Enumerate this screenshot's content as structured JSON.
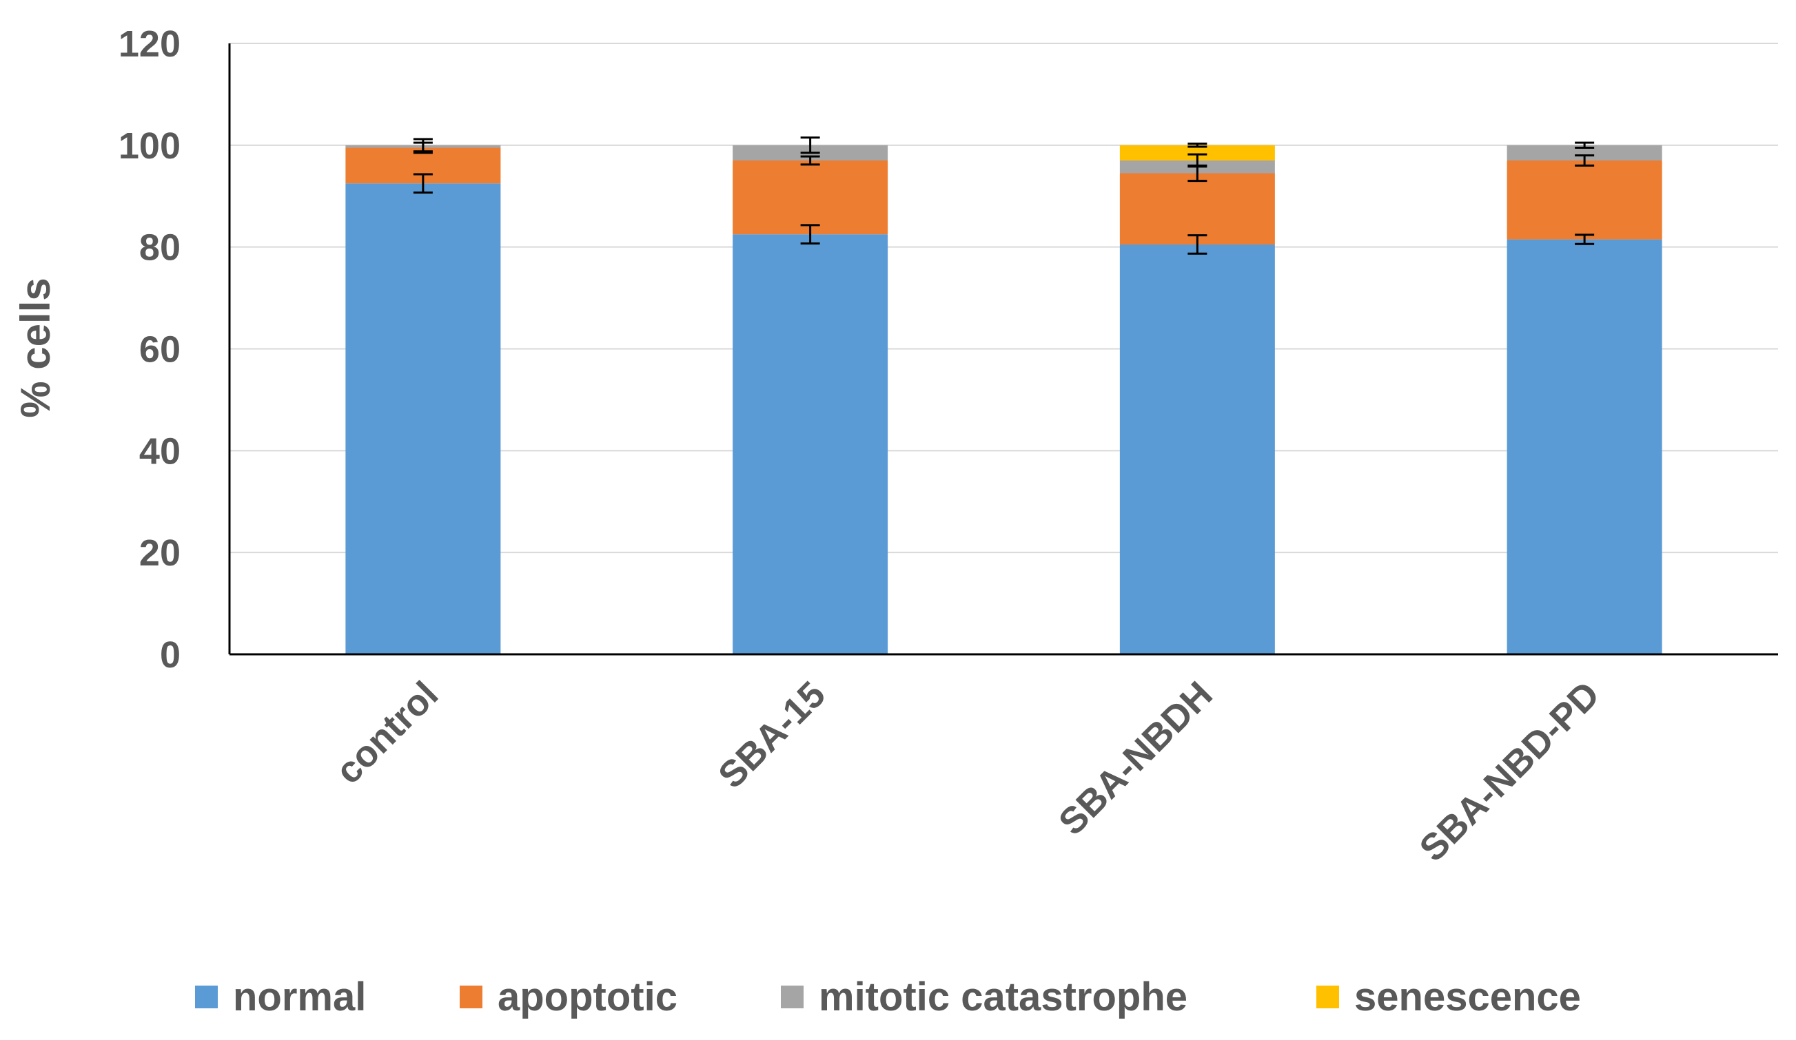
{
  "chart_data": {
    "type": "bar",
    "stacked": true,
    "categories": [
      "control",
      "SBA-15",
      "SBA-NBDH",
      "SBA-NBD-PD"
    ],
    "series": [
      {
        "name": "normal",
        "color": "#5B9BD5",
        "values": [
          92.5,
          82.5,
          80.5,
          81.5
        ],
        "errors": [
          1.8,
          1.8,
          1.8,
          0.9
        ]
      },
      {
        "name": "apoptotic",
        "color": "#ED7D31",
        "values": [
          7.0,
          14.5,
          14.0,
          15.5
        ],
        "errors": [
          1.0,
          0.8,
          1.5,
          1.0
        ]
      },
      {
        "name": "mitotic catastrophe",
        "color": "#A5A5A5",
        "values": [
          0.5,
          3.0,
          2.5,
          3.0
        ],
        "errors": [
          1.2,
          1.5,
          1.2,
          0.5
        ]
      },
      {
        "name": "senescence",
        "color": "#FFC000",
        "values": [
          0,
          0,
          3.0,
          0
        ],
        "errors": [
          0,
          0,
          0.3,
          0
        ]
      }
    ],
    "xlabel": "",
    "ylabel": "% cells",
    "ylim": [
      0,
      120
    ],
    "yticks": [
      0,
      20,
      40,
      60,
      80,
      100,
      120
    ],
    "grid": true,
    "legend_position": "bottom"
  }
}
